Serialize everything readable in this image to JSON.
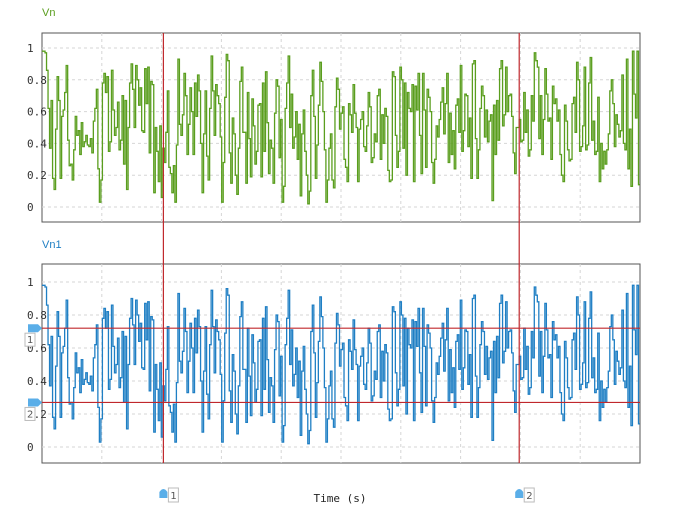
{
  "chart_data": [
    {
      "type": "line",
      "title": "Vn",
      "xlabel": "Time (s)",
      "ylabel": "",
      "ylim": [
        0,
        1
      ],
      "yticks": [
        "0",
        "0.2",
        "0.4",
        "0.6",
        "0.8",
        "1"
      ],
      "grid": true,
      "line_style": "step",
      "series": [
        {
          "name": "Vn",
          "color": "#5a9e1e",
          "values": [
            0.98,
            0.98,
            0.97,
            0.86,
            0.62,
            0.37,
            0.67,
            0.18,
            0.11,
            0.49,
            0.82,
            0.67,
            0.18,
            0.57,
            0.61,
            0.72,
            0.89,
            0.42,
            0.26,
            0.27,
            0.17,
            0.36,
            0.57,
            0.45,
            0.48,
            0.33,
            0.53,
            0.38,
            0.41,
            0.45,
            0.39,
            0.38,
            0.43,
            0.34,
            0.54,
            0.62,
            0.74,
            0.24,
            0.03,
            0.17,
            0.78,
            0.84,
            0.72,
            0.82,
            0.35,
            0.41,
            0.86,
            0.61,
            0.45,
            0.5,
            0.66,
            0.36,
            0.42,
            0.7,
            0.27,
            0.67,
            0.11,
            0.5,
            0.78,
            0.9,
            0.74,
            0.5,
            0.89,
            0.8,
            0.64,
            0.75,
            0.48,
            0.47,
            0.87,
            0.65,
            0.88,
            0.34,
            0.79,
            0.77,
            0.09,
            0.5,
            0.35,
            0.16,
            0.51,
            0.06,
            0.37,
            0.28,
            0.47,
            0.73,
            0.25,
            0.21,
            0.09,
            0.26,
            0.03,
            0.39,
            0.93,
            0.52,
            0.45,
            0.58,
            0.84,
            0.7,
            0.33,
            0.52,
            0.75,
            0.6,
            0.33,
            0.78,
            0.57,
            0.83,
            0.73,
            0.4,
            0.09,
            0.46,
            0.73,
            0.32,
            0.17,
            0.62,
            0.95,
            0.73,
            0.45,
            0.77,
            0.7,
            0.65,
            0.44,
            0.03,
            0.28,
            0.69,
            0.96,
            0.92,
            0.34,
            0.15,
            0.56,
            0.46,
            0.2,
            0.08,
            0.37,
            0.79,
            0.88,
            0.47,
            0.47,
            0.15,
            0.72,
            0.43,
            0.19,
            0.68,
            0.51,
            0.27,
            0.35,
            0.64,
            0.65,
            0.19,
            0.78,
            0.35,
            0.85,
            0.53,
            0.21,
            0.42,
            0.37,
            0.15,
            0.59,
            0.8,
            0.76,
            0.31,
            0.55,
            0.03,
            0.13,
            0.62,
            0.78,
            0.95,
            0.5,
            0.71,
            0.37,
            0.44,
            0.6,
            0.3,
            0.52,
            0.07,
            0.46,
            0.61,
            0.35,
            0.2,
            0.02,
            0.1,
            0.7,
            0.86,
            0.57,
            0.18,
            0.39,
            0.64,
            0.91,
            0.79,
            0.6,
            0.36,
            0.03,
            0.17,
            0.37,
            0.46,
            0.17,
            0.12,
            0.63,
            0.81,
            0.74,
            0.49,
            0.59,
            0.63,
            0.3,
            0.25,
            0.16,
            0.65,
            0.58,
            0.47,
            0.77,
            0.59,
            0.5,
            0.16,
            0.49,
            0.55,
            0.6,
            0.38,
            0.35,
            0.51,
            0.72,
            0.63,
            0.28,
            0.31,
            0.46,
            0.41,
            0.7,
            0.74,
            0.3,
            0.58,
            0.4,
            0.62,
            0.57,
            0.23,
            0.16,
            0.17,
            0.85,
            0.82,
            0.45,
            0.25,
            0.35,
            0.88,
            0.8,
            0.37,
            0.78,
            0.2,
            0.72,
            0.62,
            0.6,
            0.77,
            0.16,
            0.76,
            0.61,
            0.84,
            0.45,
            0.21,
            0.84,
            0.61,
            0.25,
            0.74,
            0.69,
            0.6,
            0.28,
            0.15,
            0.3,
            0.51,
            0.44,
            0.55,
            0.66,
            0.75,
            0.46,
            0.65,
            0.84,
            0.28,
            0.59,
            0.33,
            0.48,
            0.24,
            0.64,
            0.68,
            0.47,
            0.89,
            0.35,
            0.48,
            0.71,
            0.7,
            0.38,
            0.56,
            0.18,
            0.9,
            0.92,
            0.43,
            0.18,
            0.36,
            0.62,
            0.76,
            0.7,
            0.44,
            0.61,
            0.41,
            0.54,
            0.58,
            0.04,
            0.64,
            0.33,
            0.67,
            0.42,
            0.87,
            0.92,
            0.51,
            0.58,
            0.88,
            0.6,
            0.7,
            0.71,
            0.57,
            0.34,
            0.21,
            0.5,
            0.5,
            0.55,
            0.41,
            0.42,
            0.72,
            0.47,
            0.61,
            0.32,
            0.36,
            0.7,
            0.54,
            0.97,
            0.92,
            0.88,
            0.43,
            0.7,
            0.33,
            0.55,
            0.87,
            0.71,
            0.54,
            0.56,
            0.3,
            0.76,
            0.65,
            0.68,
            0.54,
            0.61,
            0.33,
            0.2,
            0.16,
            0.64,
            0.54,
            0.36,
            0.29,
            0.3,
            0.65,
            0.69,
            0.47,
            0.91,
            0.8,
            0.35,
            0.38,
            0.51,
            0.88,
            0.36,
            0.39,
            0.78,
            0.94,
            0.42,
            0.54,
            0.33,
            0.35,
            0.69,
            0.16,
            0.4,
            0.24,
            0.35,
            0.27,
            0.36,
            0.46,
            0.73,
            0.8,
            0.65,
            0.38,
            0.58,
            0.52,
            0.44,
            0.48,
            0.83,
            0.4,
            0.36,
            0.93,
            0.24,
            0.49,
            0.13,
            0.98,
            0.71,
            0.56,
            0.98,
            0.14
          ]
        }
      ]
    },
    {
      "type": "line",
      "title": "Vn1",
      "xlabel": "Time (s)",
      "ylabel": "",
      "ylim": [
        0,
        1
      ],
      "yticks": [
        "0",
        "0.2",
        "0.4",
        "0.6",
        "0.8",
        "1"
      ],
      "grid": true,
      "line_style": "step",
      "series": [
        {
          "name": "Vn1",
          "color": "#1f7fc4",
          "values": [
            0.98,
            0.98,
            0.97,
            0.86,
            0.62,
            0.37,
            0.67,
            0.18,
            0.11,
            0.49,
            0.82,
            0.67,
            0.18,
            0.57,
            0.61,
            0.72,
            0.89,
            0.42,
            0.26,
            0.27,
            0.17,
            0.36,
            0.57,
            0.45,
            0.48,
            0.33,
            0.53,
            0.38,
            0.41,
            0.45,
            0.39,
            0.38,
            0.43,
            0.34,
            0.54,
            0.62,
            0.74,
            0.24,
            0.03,
            0.17,
            0.78,
            0.84,
            0.72,
            0.82,
            0.35,
            0.41,
            0.86,
            0.61,
            0.45,
            0.5,
            0.66,
            0.36,
            0.42,
            0.7,
            0.27,
            0.67,
            0.11,
            0.5,
            0.78,
            0.9,
            0.74,
            0.5,
            0.89,
            0.8,
            0.64,
            0.75,
            0.48,
            0.47,
            0.87,
            0.65,
            0.88,
            0.34,
            0.79,
            0.77,
            0.09,
            0.5,
            0.35,
            0.16,
            0.51,
            0.06,
            0.37,
            0.28,
            0.47,
            0.73,
            0.25,
            0.21,
            0.09,
            0.26,
            0.03,
            0.39,
            0.93,
            0.52,
            0.45,
            0.58,
            0.84,
            0.7,
            0.33,
            0.52,
            0.75,
            0.6,
            0.33,
            0.78,
            0.57,
            0.83,
            0.73,
            0.4,
            0.09,
            0.46,
            0.73,
            0.32,
            0.17,
            0.62,
            0.95,
            0.73,
            0.45,
            0.77,
            0.7,
            0.65,
            0.44,
            0.03,
            0.28,
            0.69,
            0.96,
            0.92,
            0.34,
            0.15,
            0.56,
            0.46,
            0.2,
            0.08,
            0.37,
            0.79,
            0.88,
            0.47,
            0.47,
            0.15,
            0.72,
            0.43,
            0.19,
            0.68,
            0.51,
            0.27,
            0.35,
            0.64,
            0.65,
            0.19,
            0.78,
            0.35,
            0.85,
            0.53,
            0.21,
            0.42,
            0.37,
            0.15,
            0.59,
            0.8,
            0.76,
            0.31,
            0.55,
            0.03,
            0.13,
            0.62,
            0.78,
            0.95,
            0.5,
            0.71,
            0.37,
            0.44,
            0.6,
            0.3,
            0.52,
            0.07,
            0.46,
            0.61,
            0.35,
            0.2,
            0.02,
            0.1,
            0.7,
            0.86,
            0.57,
            0.18,
            0.39,
            0.64,
            0.91,
            0.79,
            0.6,
            0.36,
            0.03,
            0.17,
            0.37,
            0.46,
            0.17,
            0.12,
            0.63,
            0.81,
            0.74,
            0.49,
            0.59,
            0.63,
            0.3,
            0.25,
            0.16,
            0.65,
            0.58,
            0.47,
            0.77,
            0.59,
            0.5,
            0.16,
            0.49,
            0.55,
            0.6,
            0.38,
            0.35,
            0.51,
            0.72,
            0.63,
            0.28,
            0.31,
            0.46,
            0.41,
            0.7,
            0.74,
            0.3,
            0.58,
            0.4,
            0.62,
            0.57,
            0.23,
            0.16,
            0.17,
            0.85,
            0.82,
            0.45,
            0.25,
            0.35,
            0.88,
            0.8,
            0.37,
            0.78,
            0.2,
            0.72,
            0.62,
            0.6,
            0.77,
            0.16,
            0.76,
            0.61,
            0.84,
            0.45,
            0.21,
            0.84,
            0.61,
            0.25,
            0.74,
            0.69,
            0.6,
            0.28,
            0.15,
            0.3,
            0.51,
            0.44,
            0.55,
            0.66,
            0.75,
            0.46,
            0.65,
            0.84,
            0.28,
            0.59,
            0.33,
            0.48,
            0.24,
            0.64,
            0.68,
            0.47,
            0.89,
            0.35,
            0.48,
            0.71,
            0.7,
            0.38,
            0.56,
            0.18,
            0.9,
            0.92,
            0.43,
            0.18,
            0.36,
            0.62,
            0.76,
            0.7,
            0.44,
            0.61,
            0.41,
            0.54,
            0.58,
            0.04,
            0.64,
            0.33,
            0.67,
            0.42,
            0.87,
            0.92,
            0.51,
            0.58,
            0.88,
            0.6,
            0.7,
            0.71,
            0.57,
            0.34,
            0.21,
            0.5,
            0.5,
            0.55,
            0.41,
            0.42,
            0.72,
            0.47,
            0.61,
            0.32,
            0.36,
            0.7,
            0.54,
            0.97,
            0.92,
            0.88,
            0.43,
            0.7,
            0.33,
            0.55,
            0.87,
            0.71,
            0.54,
            0.56,
            0.3,
            0.76,
            0.65,
            0.68,
            0.54,
            0.61,
            0.33,
            0.2,
            0.16,
            0.64,
            0.54,
            0.36,
            0.29,
            0.3,
            0.65,
            0.69,
            0.47,
            0.91,
            0.8,
            0.35,
            0.38,
            0.51,
            0.88,
            0.36,
            0.39,
            0.78,
            0.94,
            0.42,
            0.54,
            0.33,
            0.35,
            0.69,
            0.16,
            0.4,
            0.24,
            0.35,
            0.27,
            0.36,
            0.46,
            0.73,
            0.8,
            0.65,
            0.38,
            0.58,
            0.52,
            0.44,
            0.48,
            0.83,
            0.4,
            0.36,
            0.93,
            0.24,
            0.49,
            0.13,
            0.98,
            0.71,
            0.56,
            0.98,
            0.14
          ]
        }
      ]
    }
  ],
  "cursors": {
    "vertical": [
      {
        "label": "1",
        "value_fraction": 0.203
      },
      {
        "label": "2",
        "value_fraction": 0.798
      }
    ],
    "horizontal": [
      {
        "label": "1",
        "value": 0.72
      },
      {
        "label": "2",
        "value": 0.27
      }
    ],
    "color": "#c0282d"
  },
  "xaxis": {
    "label": "Time (s)"
  }
}
